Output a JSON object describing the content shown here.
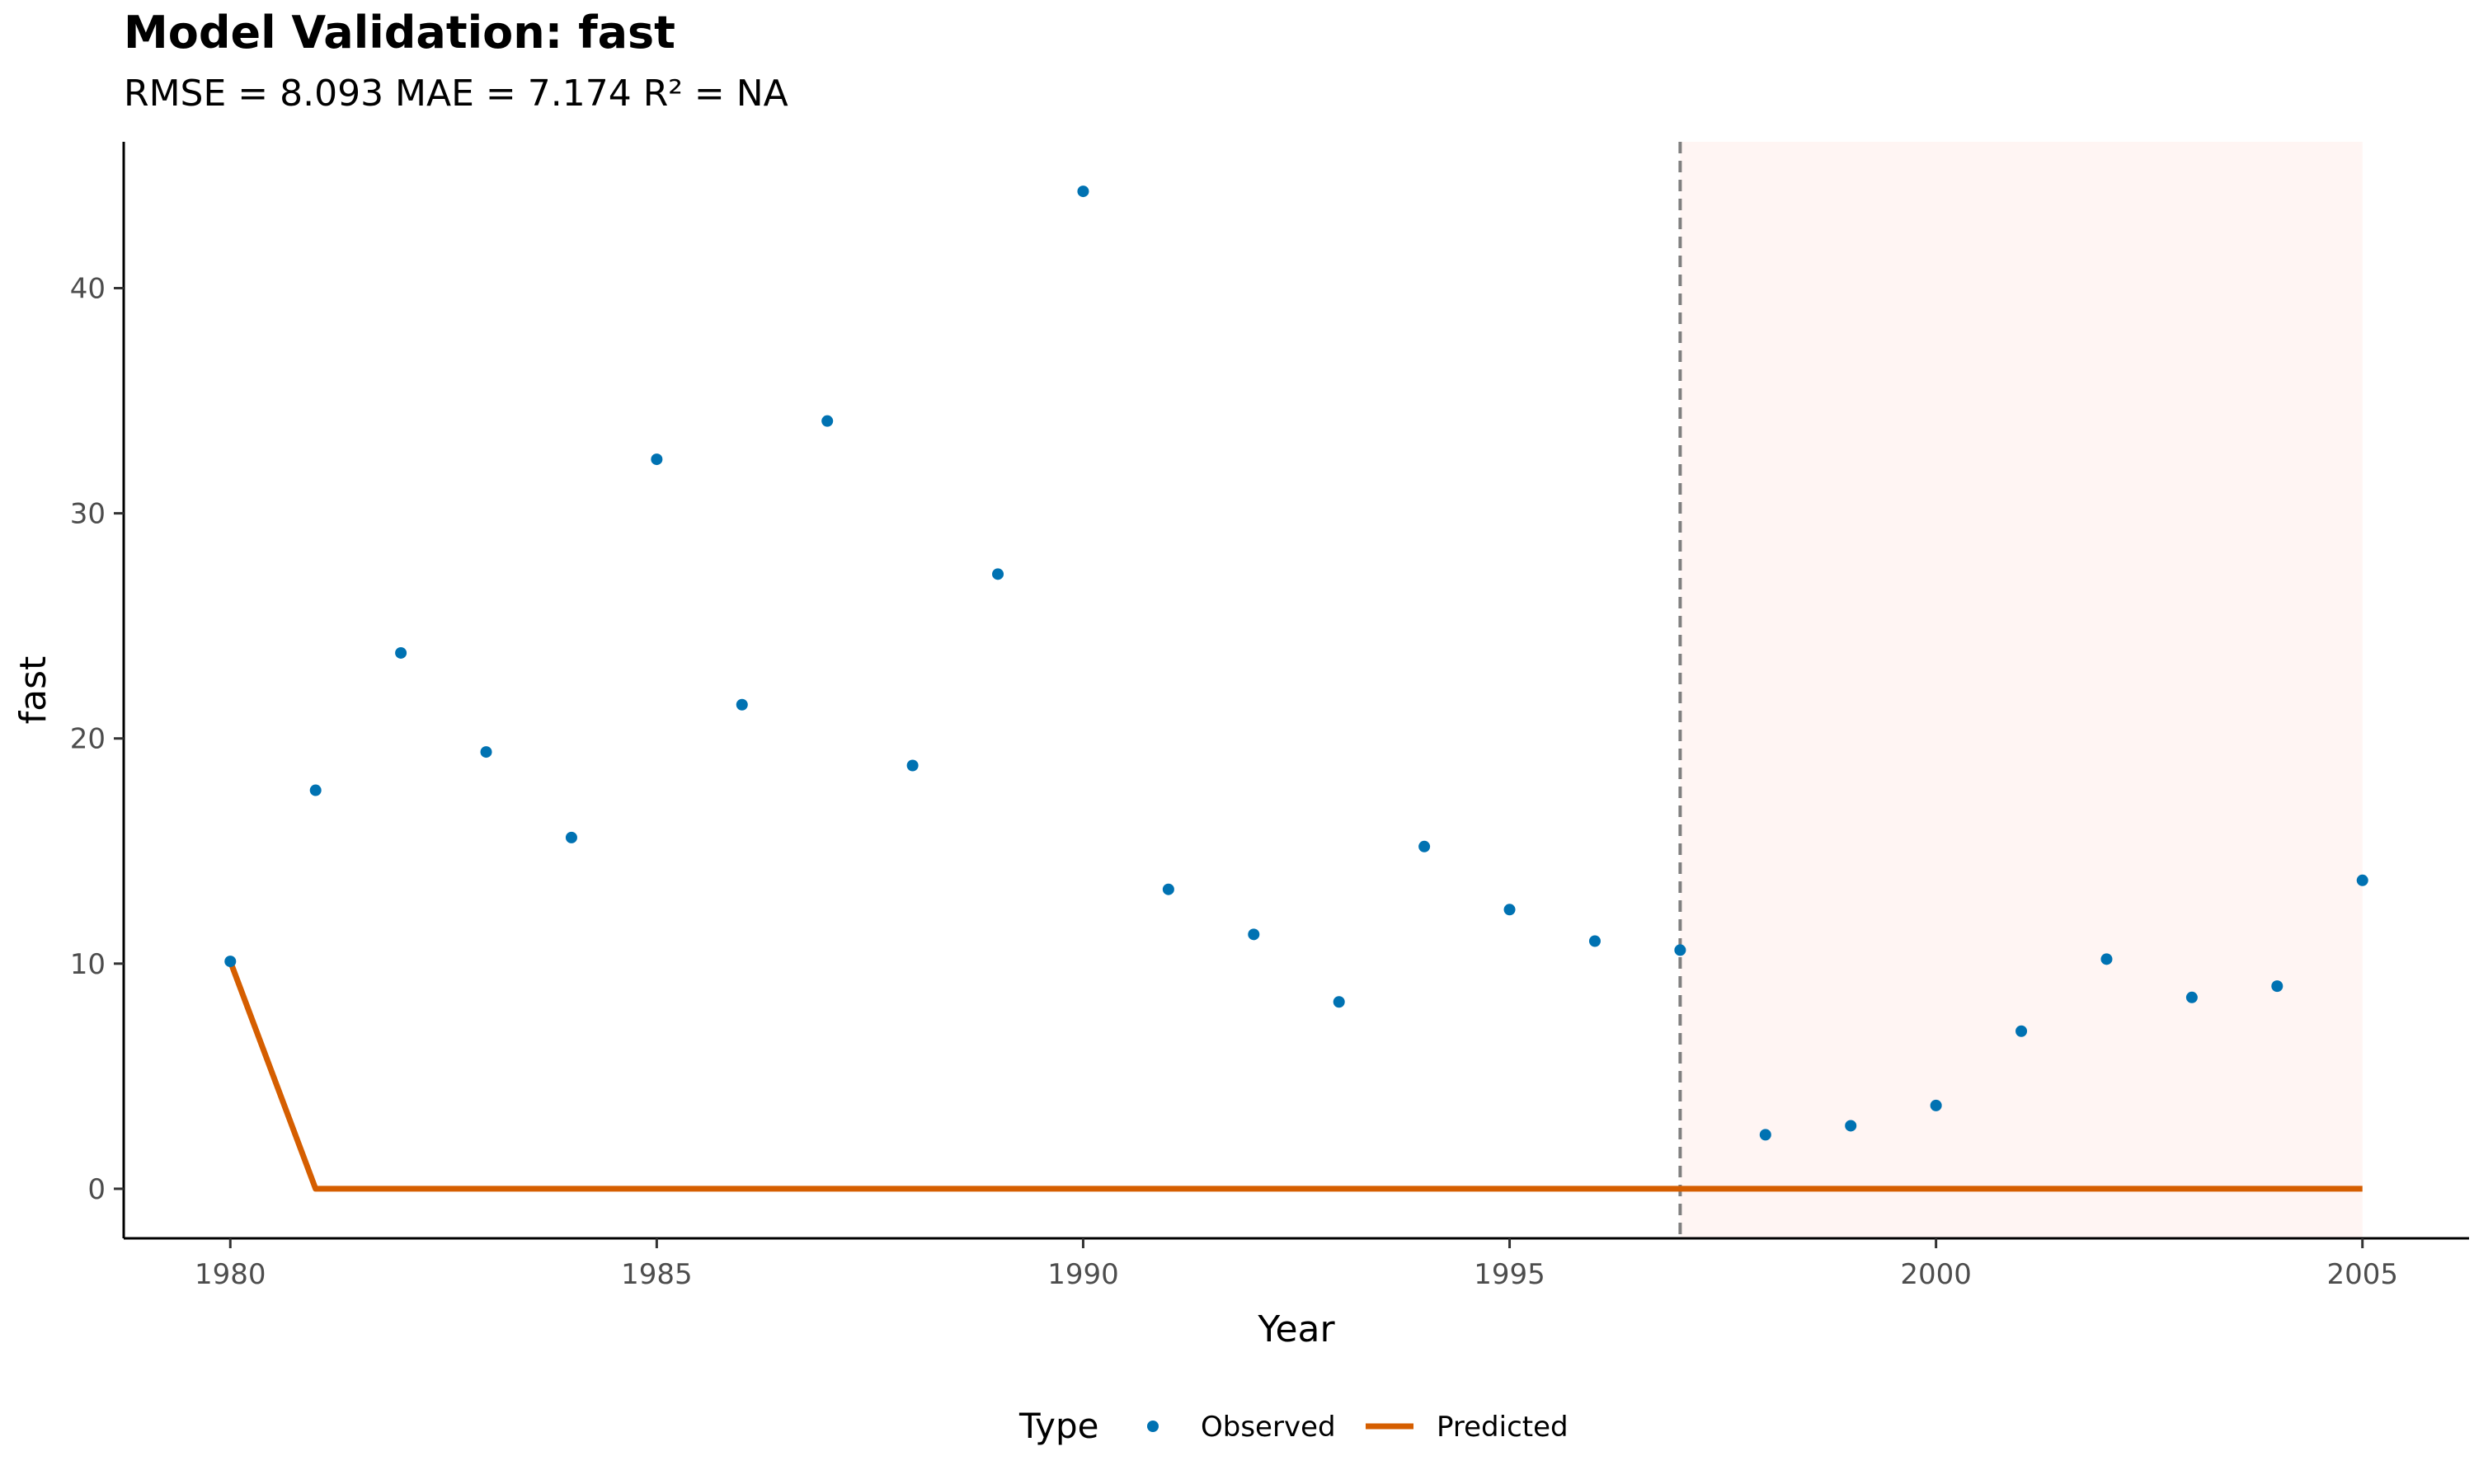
{
  "chart_data": {
    "type": "line",
    "title": "Model Validation: fast",
    "subtitle": "RMSE = 8.093 MAE = 7.174 R² = NA",
    "xlabel": "Year",
    "ylabel": "fast",
    "xlim": [
      1978.75,
      2006.25
    ],
    "ylim": [
      -2.2,
      46.5
    ],
    "x_ticks": [
      1980,
      1985,
      1990,
      1995,
      2000,
      2005
    ],
    "y_ticks": [
      0,
      10,
      20,
      30,
      40
    ],
    "grid": false,
    "legend": {
      "title": "Type",
      "position": "bottom",
      "entries": [
        "Observed",
        "Predicted"
      ]
    },
    "validation_start": 1997,
    "validation_region": [
      1997,
      2005
    ],
    "colors": {
      "observed": "#0072B2",
      "predicted": "#D55E00",
      "validation_fill": "#FFF5F3",
      "cutoff_line": "#7f7f7f"
    },
    "series": [
      {
        "name": "Observed",
        "kind": "scatter",
        "x": [
          1980,
          1981,
          1982,
          1983,
          1984,
          1985,
          1986,
          1987,
          1988,
          1989,
          1990,
          1991,
          1992,
          1993,
          1994,
          1995,
          1996,
          1997,
          1998,
          1999,
          2000,
          2001,
          2002,
          2003,
          2004,
          2005
        ],
        "y": [
          10.1,
          17.7,
          23.8,
          19.4,
          15.6,
          32.4,
          21.5,
          34.1,
          18.8,
          27.3,
          44.3,
          13.3,
          11.3,
          8.3,
          15.2,
          12.4,
          11.0,
          10.6,
          2.4,
          2.8,
          3.7,
          7.0,
          10.2,
          8.5,
          9.0,
          13.7
        ]
      },
      {
        "name": "Predicted",
        "kind": "line",
        "x": [
          1980,
          1981,
          1982,
          1983,
          1984,
          1985,
          1986,
          1987,
          1988,
          1989,
          1990,
          1991,
          1992,
          1993,
          1994,
          1995,
          1996,
          1997,
          1998,
          1999,
          2000,
          2001,
          2002,
          2003,
          2004,
          2005
        ],
        "y": [
          10.1,
          0,
          0,
          0,
          0,
          0,
          0,
          0,
          0,
          0,
          0,
          0,
          0,
          0,
          0,
          0,
          0,
          0,
          0,
          0,
          0,
          0,
          0,
          0,
          0,
          0
        ]
      }
    ]
  }
}
